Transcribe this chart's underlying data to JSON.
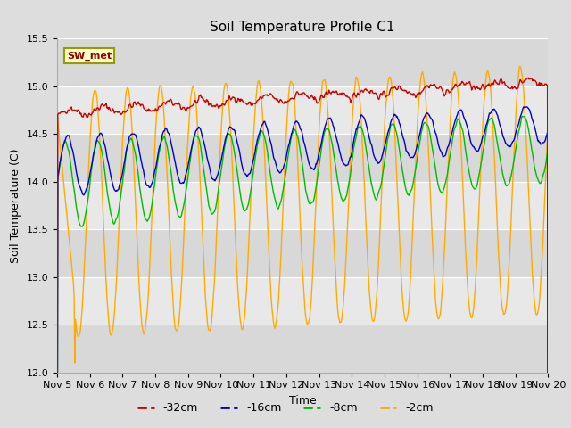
{
  "title": "Soil Temperature Profile C1",
  "xlabel": "Time",
  "ylabel": "Soil Temperature (C)",
  "ylim": [
    12.0,
    15.5
  ],
  "xlim": [
    0,
    15
  ],
  "x_tick_labels": [
    "Nov 5",
    "Nov 6",
    "Nov 7",
    "Nov 8",
    "Nov 9",
    "Nov 10",
    "Nov 11",
    "Nov 12",
    "Nov 13",
    "Nov 14",
    "Nov 15",
    "Nov 16",
    "Nov 17",
    "Nov 18",
    "Nov 19",
    "Nov 20"
  ],
  "legend_entries": [
    "-32cm",
    "-16cm",
    "-8cm",
    "-2cm"
  ],
  "legend_colors": [
    "#cc0000",
    "#0000cc",
    "#00aa00",
    "#ff8800"
  ],
  "annotation_text": "SW_met",
  "fig_bg_color": "#dddddd",
  "plot_bg_color": "#e8e8e8",
  "band_colors": [
    "#d8d8d8",
    "#e8e8e8"
  ],
  "grid_color": "#ffffff",
  "title_fontsize": 11,
  "label_fontsize": 9,
  "tick_fontsize": 8,
  "band_edges": [
    12.0,
    12.5,
    13.0,
    13.5,
    14.0,
    14.5,
    15.0,
    15.5
  ]
}
